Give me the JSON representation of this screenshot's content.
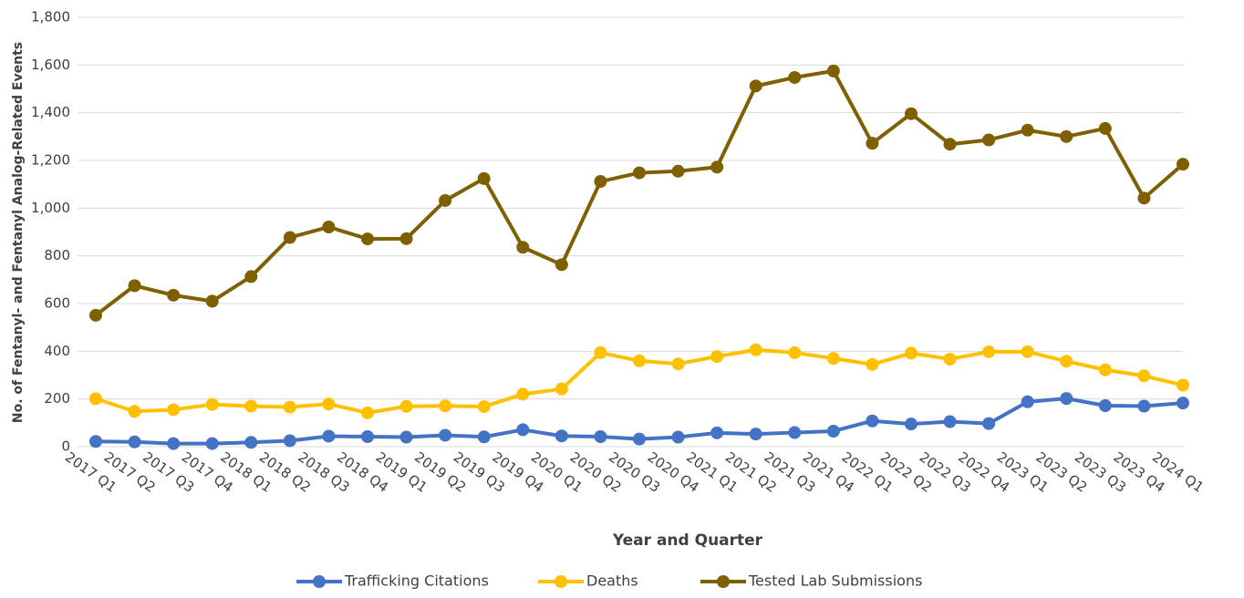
{
  "chart_data": {
    "type": "line",
    "y_label": "No. of Fentanyl- and Fentanyl Analog-Related Events",
    "x_label": "Year and Quarter",
    "categories": [
      "2017 Q1",
      "2017 Q2",
      "2017 Q3",
      "2017 Q4",
      "2018 Q1",
      "2018 Q2",
      "2018 Q3",
      "2018 Q4",
      "2019 Q1",
      "2019 Q2",
      "2019 Q3",
      "2019 Q4",
      "2020 Q1",
      "2020 Q2",
      "2020 Q3",
      "2020 Q4",
      "2021 Q1",
      "2021 Q2",
      "2021 Q3",
      "2021 Q4",
      "2022 Q1",
      "2022 Q2",
      "2022 Q3",
      "2022 Q4",
      "2023 Q1",
      "2023 Q2",
      "2023 Q3",
      "2023 Q4",
      "2024 Q1"
    ],
    "series": [
      {
        "name": "Trafficking Citations",
        "color": "#4472c4",
        "values": [
          22,
          20,
          13,
          13,
          18,
          25,
          44,
          42,
          40,
          48,
          41,
          71,
          45,
          42,
          32,
          40,
          58,
          53,
          59,
          65,
          108,
          95,
          105,
          97,
          188,
          202,
          172,
          170,
          183
        ]
      },
      {
        "name": "Deaths",
        "color": "#ffc000",
        "values": [
          201,
          148,
          155,
          177,
          170,
          166,
          179,
          142,
          169,
          171,
          168,
          220,
          242,
          394,
          360,
          347,
          378,
          406,
          394,
          370,
          345,
          392,
          367,
          398,
          398,
          358,
          322,
          297,
          258
        ]
      },
      {
        "name": "Tested Lab Submissions",
        "color": "#7f6000",
        "values": [
          551,
          675,
          635,
          610,
          713,
          877,
          921,
          871,
          872,
          1032,
          1124,
          836,
          763,
          1112,
          1148,
          1155,
          1172,
          1512,
          1548,
          1575,
          1272,
          1396,
          1268,
          1286,
          1327,
          1300,
          1334,
          1042,
          1184
        ]
      }
    ],
    "ylim": [
      0,
      1800
    ],
    "yticks": [
      0,
      200,
      400,
      600,
      800,
      {
        "value": 1000,
        "label": "1,000"
      },
      {
        "value": 1200,
        "label": "1,200"
      },
      {
        "value": 1400,
        "label": "1,400"
      },
      {
        "value": 1600,
        "label": "1,600"
      },
      {
        "value": 1800,
        "label": "1,800"
      }
    ],
    "grid": true,
    "legend": "bottom"
  }
}
